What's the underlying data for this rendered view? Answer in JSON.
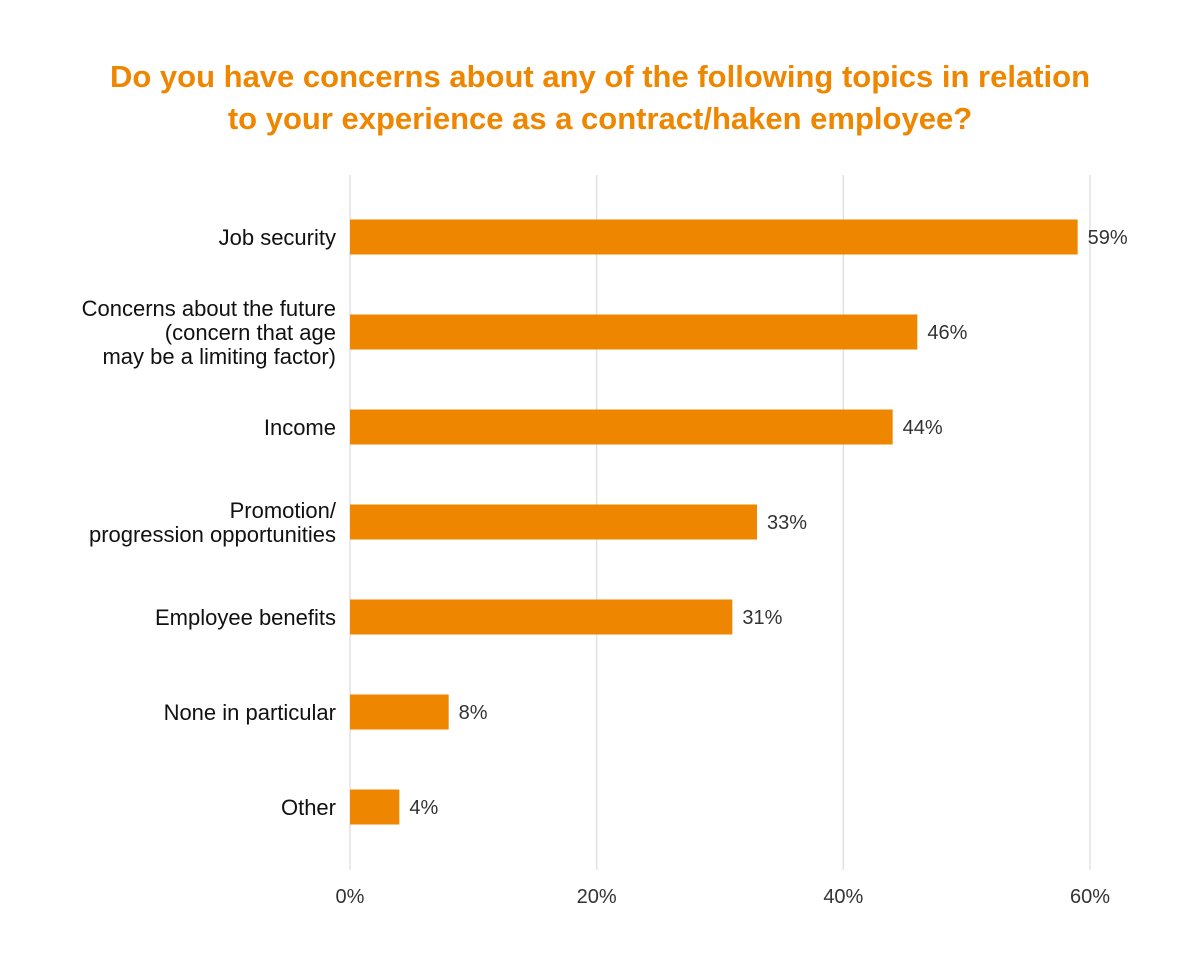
{
  "chart_data": {
    "type": "bar",
    "orientation": "horizontal",
    "title_lines": [
      "Do you have concerns about any of the following topics in relation",
      "to your experience as a contract/haken employee?"
    ],
    "categories": [
      [
        "Job security"
      ],
      [
        "Concerns about the future",
        "(concern that age",
        "may be a limiting factor)"
      ],
      [
        "Income"
      ],
      [
        "Promotion/",
        "progression opportunities"
      ],
      [
        "Employee benefits"
      ],
      [
        "None in particular"
      ],
      [
        "Other"
      ]
    ],
    "values": [
      59,
      46,
      44,
      33,
      31,
      8,
      4
    ],
    "value_labels": [
      "59%",
      "46%",
      "44%",
      "33%",
      "31%",
      "8%",
      "4%"
    ],
    "xlim": [
      0,
      60
    ],
    "x_ticks": [
      0,
      20,
      40,
      60
    ],
    "x_tick_labels": [
      "0%",
      "20%",
      "40%",
      "60%"
    ],
    "grid": true,
    "bar_color": "#ee8600",
    "title_color": "#ee8600",
    "grid_color": "#e2e2e2"
  }
}
